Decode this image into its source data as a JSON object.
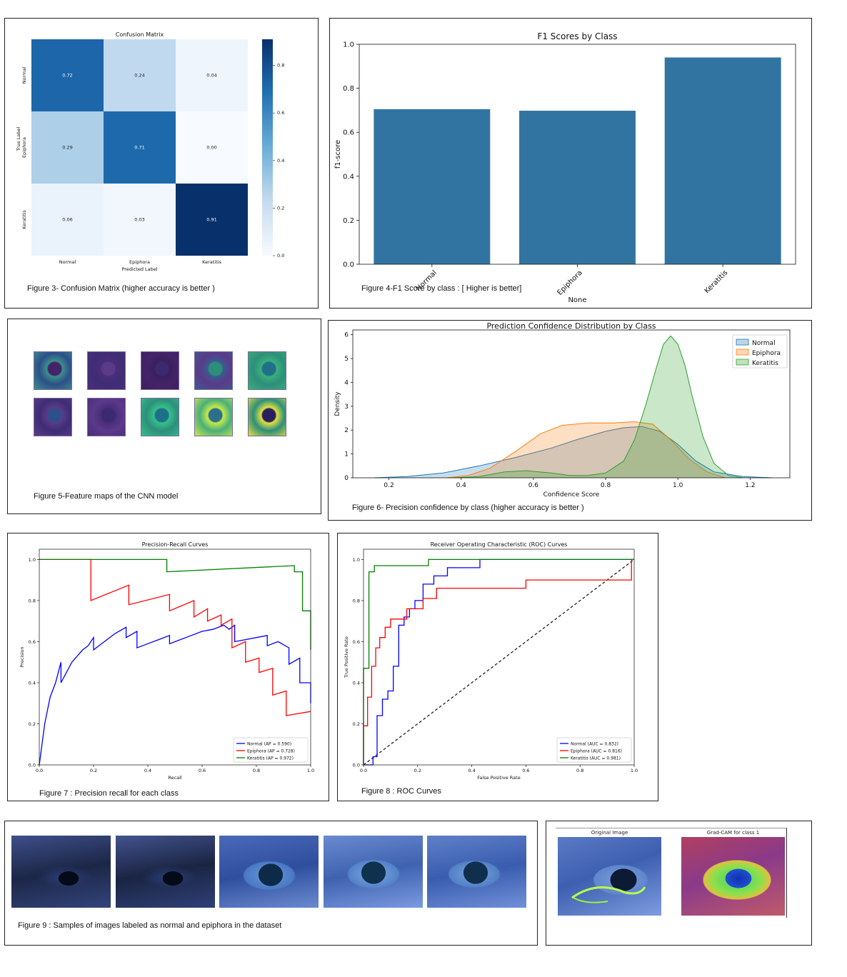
{
  "captions": {
    "fig3": "Figure 3- Confusion Matrix (higher accuracy is better )",
    "fig4": "Figure 4-F1 Score by class : [  Higher is better]",
    "fig5": "Figure 5-Feature maps of the CNN model",
    "fig6": "Figure 6- Precision confidence by class (higher accuracy is better )",
    "fig7": "Figure 7 : Precision recall for each class",
    "fig8": "Figure 8 : ROC Curves",
    "fig9": "Figure 9 : Samples of images labeled as normal and epiphora  in the dataset"
  },
  "gradcam": {
    "original_title": "Original Image",
    "gradcam_title": "Grad-CAM for class 1"
  },
  "chart_data": [
    {
      "id": "confusion",
      "type": "heatmap",
      "title": "Confusion Matrix",
      "xlabel": "Predicted Label",
      "ylabel": "True Label",
      "rows": [
        "Normal",
        "Epiphora",
        "Keratitis"
      ],
      "cols": [
        "Normal",
        "Epiphora",
        "Keratitis"
      ],
      "values": [
        [
          0.72,
          0.24,
          0.04
        ],
        [
          0.29,
          0.71,
          0.0
        ],
        [
          0.06,
          0.03,
          0.91
        ]
      ],
      "colorbar_ticks": [
        0.0,
        0.2,
        0.4,
        0.6,
        0.8
      ],
      "colorbar_ticklabels": [
        "0.0",
        "0.2",
        "0.4",
        "0.6",
        "0.8"
      ],
      "vmin": 0.0,
      "vmax": 0.91
    },
    {
      "id": "f1",
      "type": "bar",
      "title": "F1 Scores by Class",
      "xlabel": "None",
      "ylabel": "f1-score",
      "categories": [
        "Normal",
        "Epiphora",
        "Keratitis"
      ],
      "values": [
        0.705,
        0.698,
        0.94
      ],
      "ylim": [
        0.0,
        1.0
      ],
      "yticks": [
        0.0,
        0.2,
        0.4,
        0.6,
        0.8,
        1.0
      ],
      "yticklabels": [
        "0.0",
        "0.2",
        "0.4",
        "0.6",
        "0.8",
        "1.0"
      ],
      "color": "#3274a1"
    },
    {
      "id": "confidence",
      "type": "area",
      "title": "Prediction Confidence Distribution by Class",
      "xlabel": "Confidence Score",
      "ylabel": "Density",
      "xlim": [
        0.1,
        1.31
      ],
      "ylim": [
        0,
        6.2
      ],
      "xticks": [
        0.2,
        0.4,
        0.6,
        0.8,
        1.0,
        1.2
      ],
      "xticklabels": [
        "0.2",
        "0.4",
        "0.6",
        "0.8",
        "1.0",
        "1.2"
      ],
      "yticks": [
        0,
        1,
        2,
        3,
        4,
        5,
        6
      ],
      "yticklabels": [
        "0",
        "1",
        "2",
        "3",
        "4",
        "5",
        "6"
      ],
      "legend": "top-right",
      "series": [
        {
          "name": "Normal",
          "color": "#1f77b4",
          "x": [
            0.16,
            0.25,
            0.35,
            0.45,
            0.55,
            0.65,
            0.72,
            0.8,
            0.85,
            0.9,
            0.95,
            1.0,
            1.05,
            1.1,
            1.18,
            1.26
          ],
          "y": [
            0.0,
            0.05,
            0.2,
            0.5,
            0.85,
            1.25,
            1.6,
            1.95,
            2.1,
            2.15,
            1.95,
            1.4,
            0.7,
            0.25,
            0.05,
            0.0
          ]
        },
        {
          "name": "Epiphora",
          "color": "#ff7f0e",
          "x": [
            0.36,
            0.42,
            0.48,
            0.55,
            0.62,
            0.68,
            0.75,
            0.82,
            0.88,
            0.93,
            0.98,
            1.03,
            1.08,
            1.13
          ],
          "y": [
            0.0,
            0.1,
            0.4,
            1.1,
            1.85,
            2.2,
            2.3,
            2.3,
            2.35,
            2.25,
            1.6,
            0.8,
            0.25,
            0.0
          ]
        },
        {
          "name": "Keratitis",
          "color": "#2ca02c",
          "x": [
            0.38,
            0.45,
            0.52,
            0.58,
            0.65,
            0.7,
            0.75,
            0.8,
            0.85,
            0.88,
            0.91,
            0.94,
            0.96,
            0.98,
            1.0,
            1.02,
            1.04,
            1.07,
            1.1,
            1.14,
            1.18
          ],
          "y": [
            0.0,
            0.05,
            0.25,
            0.3,
            0.2,
            0.1,
            0.1,
            0.2,
            0.7,
            1.6,
            3.0,
            4.6,
            5.6,
            5.95,
            5.6,
            4.7,
            3.4,
            1.7,
            0.6,
            0.1,
            0.0
          ]
        }
      ]
    },
    {
      "id": "pr",
      "type": "line",
      "title": "Precision-Recall Curves",
      "xlabel": "Recall",
      "ylabel": "Precision",
      "xlim": [
        0,
        1
      ],
      "ylim": [
        0,
        1.05
      ],
      "xticks": [
        0.0,
        0.2,
        0.4,
        0.6,
        0.8,
        1.0
      ],
      "xticklabels": [
        "0.0",
        "0.2",
        "0.4",
        "0.6",
        "0.8",
        "1.0"
      ],
      "yticks": [
        0.0,
        0.2,
        0.4,
        0.6,
        0.8,
        1.0
      ],
      "yticklabels": [
        "0.0",
        "0.2",
        "0.4",
        "0.6",
        "0.8",
        "1.0"
      ],
      "legend": "lower right",
      "series": [
        {
          "name": "Normal (AP = 0.590)",
          "color": "#0000ff",
          "x": [
            0.0,
            0.02,
            0.04,
            0.06,
            0.08,
            0.08,
            0.1,
            0.12,
            0.14,
            0.16,
            0.18,
            0.2,
            0.2,
            0.24,
            0.28,
            0.32,
            0.32,
            0.36,
            0.36,
            0.4,
            0.44,
            0.48,
            0.48,
            0.52,
            0.56,
            0.6,
            0.64,
            0.68,
            0.7,
            0.72,
            0.72,
            0.76,
            0.8,
            0.84,
            0.84,
            0.88,
            0.92,
            0.92,
            0.96,
            0.96,
            1.0,
            1.0
          ],
          "y": [
            0.0,
            0.2,
            0.33,
            0.4,
            0.5,
            0.4,
            0.45,
            0.5,
            0.53,
            0.56,
            0.58,
            0.62,
            0.56,
            0.6,
            0.64,
            0.67,
            0.62,
            0.65,
            0.57,
            0.59,
            0.61,
            0.63,
            0.59,
            0.61,
            0.63,
            0.65,
            0.66,
            0.68,
            0.66,
            0.68,
            0.6,
            0.61,
            0.62,
            0.63,
            0.58,
            0.6,
            0.57,
            0.49,
            0.52,
            0.4,
            0.4,
            0.3
          ]
        },
        {
          "name": "Epiphora (AP = 0.728)",
          "color": "#ff0000",
          "x": [
            0.0,
            0.19,
            0.19,
            0.33,
            0.33,
            0.48,
            0.48,
            0.57,
            0.57,
            0.62,
            0.62,
            0.67,
            0.67,
            0.71,
            0.71,
            0.76,
            0.76,
            0.81,
            0.81,
            0.86,
            0.86,
            0.91,
            0.91,
            1.0
          ],
          "y": [
            1.0,
            1.0,
            0.8,
            0.875,
            0.78,
            0.83,
            0.75,
            0.8,
            0.72,
            0.76,
            0.7,
            0.73,
            0.68,
            0.71,
            0.57,
            0.6,
            0.5,
            0.52,
            0.45,
            0.47,
            0.34,
            0.36,
            0.24,
            0.26
          ]
        },
        {
          "name": "Keratitis (AP = 0.972)",
          "color": "#008000",
          "x": [
            0.0,
            0.47,
            0.47,
            0.94,
            0.94,
            0.97,
            0.97,
            1.0,
            1.0
          ],
          "y": [
            1.0,
            1.0,
            0.94,
            0.97,
            0.94,
            0.94,
            0.75,
            0.75,
            0.56
          ]
        }
      ]
    },
    {
      "id": "roc",
      "type": "line",
      "title": "Receiver Operating Characteristic (ROC) Curves",
      "xlabel": "False Positive Rate",
      "ylabel": "True Positive Rate",
      "xlim": [
        0,
        1
      ],
      "ylim": [
        0,
        1.05
      ],
      "xticks": [
        0.0,
        0.2,
        0.4,
        0.6,
        0.8,
        1.0
      ],
      "xticklabels": [
        "0.0",
        "0.2",
        "0.4",
        "0.6",
        "0.8",
        "1.0"
      ],
      "yticks": [
        0.0,
        0.2,
        0.4,
        0.6,
        0.8,
        1.0
      ],
      "yticklabels": [
        "0.0",
        "0.2",
        "0.4",
        "0.6",
        "0.8",
        "1.0"
      ],
      "legend": "lower right",
      "series": [
        {
          "name": "Normal (AUC = 0.832)",
          "color": "#0000ff",
          "x": [
            0.0,
            0.035,
            0.035,
            0.05,
            0.05,
            0.07,
            0.07,
            0.09,
            0.09,
            0.11,
            0.11,
            0.13,
            0.13,
            0.15,
            0.15,
            0.17,
            0.17,
            0.19,
            0.19,
            0.22,
            0.22,
            0.26,
            0.26,
            0.31,
            0.31,
            0.43,
            0.43,
            0.69,
            0.69,
            1.0
          ],
          "y": [
            0.0,
            0.0,
            0.04,
            0.04,
            0.24,
            0.24,
            0.32,
            0.32,
            0.36,
            0.36,
            0.48,
            0.48,
            0.68,
            0.68,
            0.72,
            0.72,
            0.76,
            0.76,
            0.8,
            0.8,
            0.88,
            0.88,
            0.92,
            0.92,
            0.96,
            0.96,
            1.0,
            1.0,
            1.0,
            1.0
          ]
        },
        {
          "name": "Epiphora (AUC = 0.816)",
          "color": "#ff0000",
          "x": [
            0.0,
            0.0,
            0.015,
            0.015,
            0.03,
            0.03,
            0.045,
            0.045,
            0.06,
            0.06,
            0.08,
            0.08,
            0.1,
            0.1,
            0.16,
            0.16,
            0.22,
            0.22,
            0.27,
            0.27,
            0.6,
            0.6,
            0.99,
            0.99,
            1.0
          ],
          "y": [
            0.0,
            0.19,
            0.19,
            0.33,
            0.33,
            0.48,
            0.48,
            0.57,
            0.57,
            0.62,
            0.62,
            0.67,
            0.67,
            0.71,
            0.71,
            0.76,
            0.76,
            0.81,
            0.81,
            0.86,
            0.86,
            0.9,
            0.9,
            1.0,
            1.0
          ]
        },
        {
          "name": "Keratitis (AUC = 0.981)",
          "color": "#008000",
          "x": [
            0.0,
            0.0,
            0.02,
            0.02,
            0.04,
            0.04,
            0.24,
            0.24,
            1.0
          ],
          "y": [
            0.0,
            0.47,
            0.47,
            0.94,
            0.94,
            0.97,
            0.97,
            1.0,
            1.0
          ]
        }
      ]
    }
  ]
}
